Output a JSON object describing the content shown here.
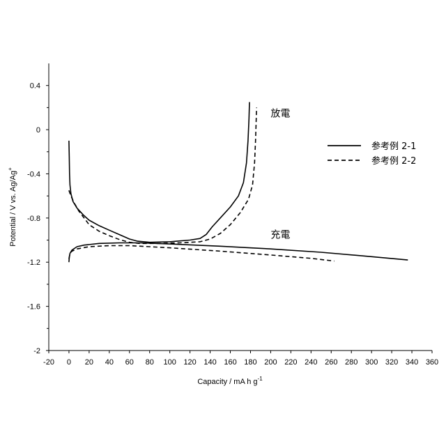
{
  "chart_data": {
    "type": "line",
    "xlabel": "Capacity / mA h g",
    "xlabel_sup": "-1",
    "ylabel": "Potential / V vs. Ag/Ag",
    "ylabel_sup": "+",
    "xlim": [
      -20,
      360
    ],
    "ylim": [
      -2,
      0.6
    ],
    "xticks": [
      -20,
      0,
      20,
      40,
      60,
      80,
      100,
      120,
      140,
      160,
      180,
      200,
      220,
      240,
      260,
      280,
      300,
      320,
      340,
      360
    ],
    "yticks": [
      0.4,
      0,
      -0.4,
      -0.8,
      -1.2,
      -1.6,
      -2
    ],
    "ytick_labels": [
      "0.4",
      "0",
      "-0.4",
      "-0.8",
      "-1.2",
      "-1.6",
      "-2"
    ],
    "grid": false,
    "legend_position": "top-right",
    "legend": [
      {
        "label": "参考例 2-1",
        "style": "solid"
      },
      {
        "label": "参考例 2-2",
        "style": "dashed"
      }
    ],
    "annotations": [
      {
        "text": "放電",
        "x": 200,
        "y": 0.15
      },
      {
        "text": "充電",
        "x": 200,
        "y": -0.95
      }
    ],
    "series": [
      {
        "name": "参考例 2-1",
        "style": "solid",
        "segments": [
          {
            "label": "放電",
            "points": [
              [
                0,
                -0.1
              ],
              [
                0.3,
                -0.25
              ],
              [
                0.6,
                -0.4
              ],
              [
                1,
                -0.5
              ],
              [
                2,
                -0.58
              ],
              [
                4,
                -0.65
              ],
              [
                8,
                -0.71
              ],
              [
                14,
                -0.77
              ],
              [
                20,
                -0.82
              ],
              [
                30,
                -0.87
              ],
              [
                40,
                -0.91
              ],
              [
                50,
                -0.95
              ],
              [
                60,
                -0.99
              ],
              [
                68,
                -1.01
              ],
              [
                80,
                -1.02
              ],
              [
                100,
                -1.015
              ],
              [
                120,
                -1.0
              ],
              [
                130,
                -0.985
              ],
              [
                136,
                -0.95
              ],
              [
                142,
                -0.88
              ],
              [
                150,
                -0.8
              ],
              [
                160,
                -0.7
              ],
              [
                168,
                -0.6
              ],
              [
                173,
                -0.48
              ],
              [
                176,
                -0.3
              ],
              [
                177.5,
                -0.1
              ],
              [
                178.5,
                0.1
              ],
              [
                179,
                0.25
              ]
            ]
          },
          {
            "label": "充電",
            "points": [
              [
                0,
                -1.2
              ],
              [
                0.3,
                -1.16
              ],
              [
                1,
                -1.12
              ],
              [
                3,
                -1.09
              ],
              [
                8,
                -1.06
              ],
              [
                15,
                -1.045
              ],
              [
                30,
                -1.03
              ],
              [
                50,
                -1.025
              ],
              [
                70,
                -1.025
              ],
              [
                100,
                -1.035
              ],
              [
                150,
                -1.055
              ],
              [
                200,
                -1.08
              ],
              [
                250,
                -1.11
              ],
              [
                300,
                -1.15
              ],
              [
                336,
                -1.18
              ]
            ]
          }
        ]
      },
      {
        "name": "参考例 2-2",
        "style": "dashed",
        "segments": [
          {
            "label": "放電",
            "points": [
              [
                0,
                -0.55
              ],
              [
                2,
                -0.6
              ],
              [
                5,
                -0.66
              ],
              [
                10,
                -0.74
              ],
              [
                15,
                -0.8
              ],
              [
                20,
                -0.86
              ],
              [
                30,
                -0.92
              ],
              [
                40,
                -0.96
              ],
              [
                50,
                -0.995
              ],
              [
                60,
                -1.02
              ],
              [
                70,
                -1.03
              ],
              [
                90,
                -1.03
              ],
              [
                110,
                -1.025
              ],
              [
                130,
                -1.015
              ],
              [
                140,
                -0.99
              ],
              [
                150,
                -0.94
              ],
              [
                160,
                -0.86
              ],
              [
                170,
                -0.75
              ],
              [
                178,
                -0.63
              ],
              [
                182,
                -0.5
              ],
              [
                184,
                -0.3
              ],
              [
                185,
                -0.1
              ],
              [
                186,
                0.2
              ]
            ]
          },
          {
            "label": "充電",
            "points": [
              [
                0,
                -1.17
              ],
              [
                1,
                -1.12
              ],
              [
                3,
                -1.1
              ],
              [
                8,
                -1.08
              ],
              [
                20,
                -1.06
              ],
              [
                40,
                -1.05
              ],
              [
                60,
                -1.05
              ],
              [
                80,
                -1.06
              ],
              [
                100,
                -1.07
              ],
              [
                150,
                -1.1
              ],
              [
                200,
                -1.135
              ],
              [
                240,
                -1.165
              ],
              [
                263,
                -1.19
              ]
            ]
          }
        ]
      }
    ]
  }
}
